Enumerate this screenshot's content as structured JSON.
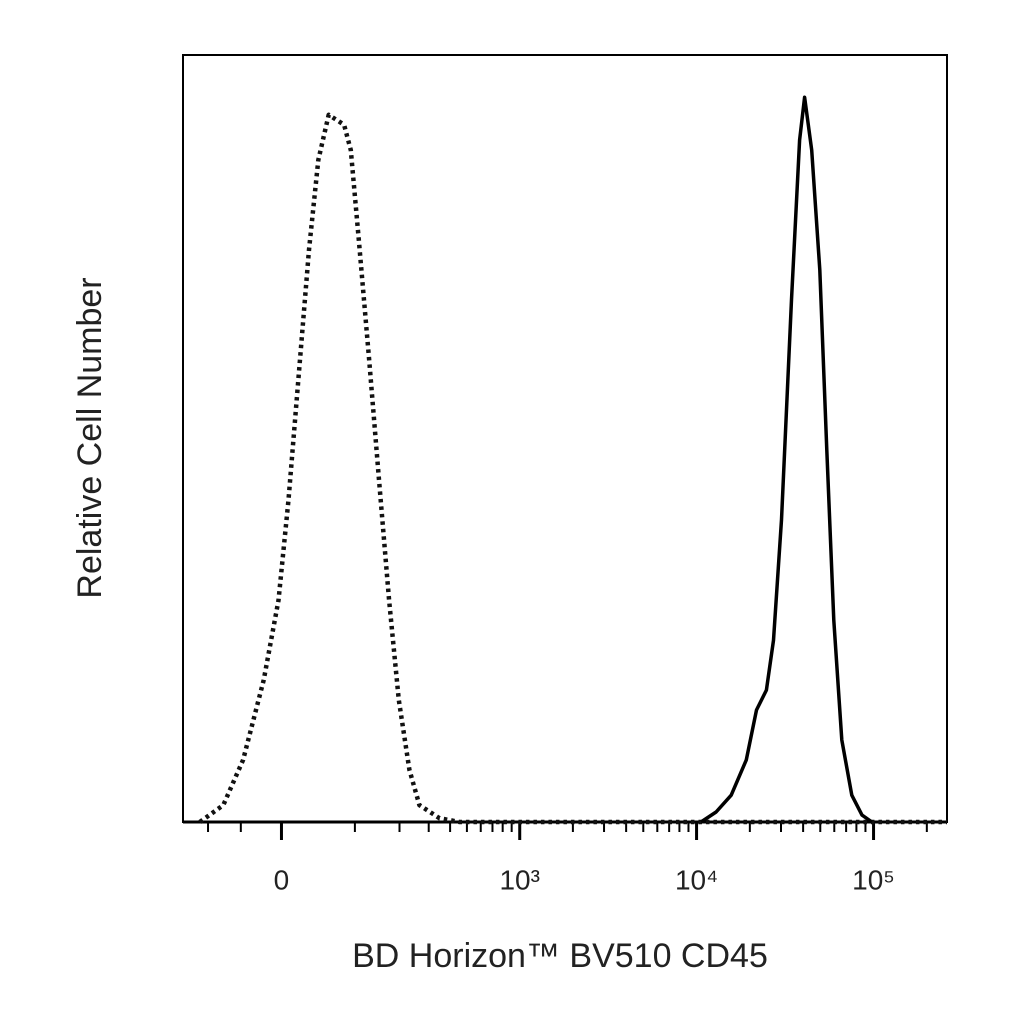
{
  "chart_data": {
    "type": "line",
    "xlabel": "BD Horizon™ BV510 CD45",
    "ylabel": "Relative Cell Number",
    "xscale": "asinh",
    "xlim": [
      -150,
      260000
    ],
    "ylim": [
      0,
      100
    ],
    "xticks": [
      {
        "value": 0,
        "label": "0"
      },
      {
        "value": 1000,
        "label": "10³"
      },
      {
        "value": 10000,
        "label": "10⁴"
      },
      {
        "value": 100000,
        "label": "10⁵"
      }
    ],
    "xminor_ticks": [
      -100,
      -50,
      100,
      200,
      300,
      400,
      500,
      600,
      700,
      800,
      900,
      2000,
      3000,
      4000,
      5000,
      6000,
      7000,
      8000,
      9000,
      20000,
      30000,
      40000,
      50000,
      60000,
      70000,
      80000,
      90000,
      200000
    ],
    "series": [
      {
        "color": "#111111",
        "dash": "dotted",
        "x": [
          -115,
          -109,
          -75,
          -47,
          -21,
          -3.5,
          8.3,
          20,
          33,
          45,
          59,
          82,
          93,
          107,
          127,
          148,
          172,
          198,
          230,
          264,
          347,
          454,
          10000,
          260000
        ],
        "values": [
          0,
          0.3,
          2.2,
          8.1,
          18.5,
          28.9,
          42,
          57.6,
          74.6,
          86.3,
          92.2,
          90.9,
          87.6,
          75.9,
          60.2,
          44.6,
          28.9,
          15.9,
          6.8,
          2.2,
          0.5,
          0,
          0,
          0
        ]
      },
      {
        "color": "#000000",
        "dash": "solid",
        "x": [
          10600,
          12900,
          15700,
          19100,
          21800,
          24800,
          27200,
          30200,
          34400,
          38200,
          40800,
          44700,
          49700,
          54400,
          59600,
          66200,
          75400,
          86000,
          97900
        ],
        "values": [
          0,
          1.3,
          3.5,
          8.1,
          14.6,
          17.2,
          23.7,
          39.4,
          68.1,
          88.9,
          94.5,
          87.6,
          72,
          48.5,
          26.3,
          10.7,
          3.5,
          0.9,
          0
        ]
      }
    ]
  }
}
